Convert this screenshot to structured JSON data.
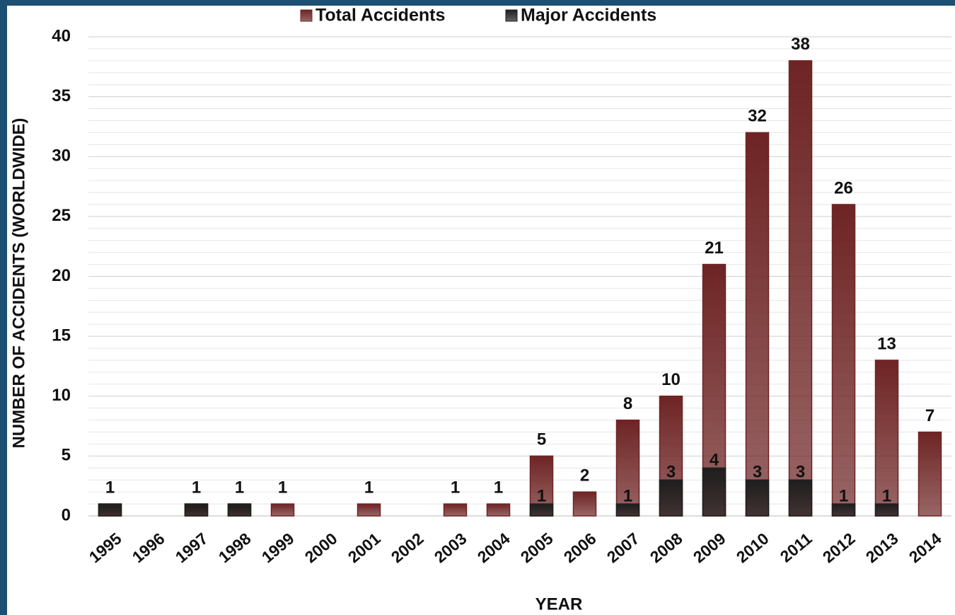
{
  "chart_data": {
    "type": "bar",
    "overlay": true,
    "x_label": "YEAR",
    "y_label": "NUMBER OF ACCIDENTS  (WORLDWIDE)",
    "categories": [
      "1995",
      "1996",
      "1997",
      "1998",
      "1999",
      "2000",
      "2001",
      "2002",
      "2003",
      "2004",
      "2005",
      "2006",
      "2007",
      "2008",
      "2009",
      "2010",
      "2011",
      "2012",
      "2013",
      "2014"
    ],
    "series": [
      {
        "name": "Total Accidents",
        "color": "#6e2424",
        "values": [
          1,
          null,
          1,
          1,
          1,
          null,
          1,
          null,
          1,
          1,
          5,
          2,
          8,
          10,
          21,
          32,
          38,
          26,
          13,
          7
        ]
      },
      {
        "name": "Major Accidents",
        "color": "#1e1e1e",
        "values": [
          1,
          null,
          1,
          1,
          null,
          null,
          null,
          null,
          null,
          null,
          1,
          null,
          1,
          3,
          4,
          3,
          3,
          1,
          1,
          null
        ]
      }
    ],
    "ylim": [
      0,
      40
    ],
    "yticks": [
      0,
      5,
      10,
      15,
      20,
      25,
      30,
      35,
      40
    ],
    "grid": true,
    "legend": "top"
  }
}
